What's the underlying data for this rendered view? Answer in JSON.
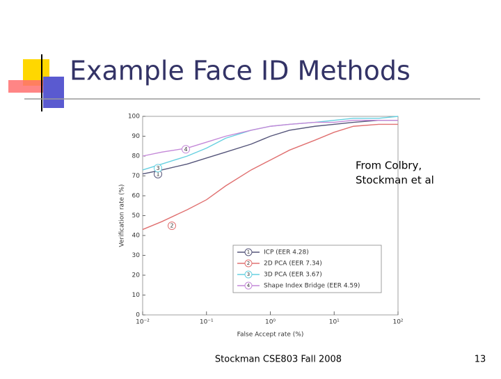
{
  "title": "Example Face ID Methods",
  "note": [
    "From Colbry,",
    "Stockman et al"
  ],
  "footer": "Stockman CSE803 Fall 2008",
  "page_number": "13",
  "chart_data": {
    "type": "line",
    "x_label": "False Accept rate (%)",
    "y_label": "Verification rate (%)",
    "xscale": "log",
    "xlim": [
      0.01,
      100
    ],
    "xticks": [
      {
        "value": 0.01,
        "label": "10⁻²"
      },
      {
        "value": 0.1,
        "label": "10⁻¹"
      },
      {
        "value": 1,
        "label": "10⁰"
      },
      {
        "value": 10,
        "label": "10¹"
      },
      {
        "value": 100,
        "label": "10²"
      }
    ],
    "ylim": [
      0,
      100
    ],
    "yticks": [
      0,
      10,
      20,
      30,
      40,
      50,
      60,
      70,
      80,
      90,
      100
    ],
    "x": [
      0.01,
      0.02,
      0.05,
      0.1,
      0.2,
      0.5,
      1,
      2,
      5,
      10,
      20,
      50,
      100
    ],
    "series": [
      {
        "name": "ICP (EER 4.28)",
        "marker": "1",
        "color": "#55557a",
        "values": [
          71,
          73,
          76,
          79,
          82,
          86,
          90,
          93,
          95,
          96,
          97,
          98,
          98
        ]
      },
      {
        "name": "2D PCA (EER 7.34)",
        "marker": "2",
        "color": "#e07070",
        "values": [
          43,
          47,
          53,
          58,
          65,
          73,
          78,
          83,
          88,
          92,
          95,
          96,
          96
        ]
      },
      {
        "name": "3D PCA (EER 3.67)",
        "marker": "3",
        "color": "#66d0e0",
        "values": [
          73,
          76,
          80,
          84,
          89,
          93,
          95,
          96,
          97,
          98,
          99,
          99,
          100
        ]
      },
      {
        "name": "Shape Index Bridge (EER 4.59)",
        "marker": "4",
        "color": "#c488d8",
        "values": [
          80,
          82,
          84,
          87,
          90,
          93,
          95,
          96,
          97,
          97,
          98,
          98,
          98
        ]
      }
    ],
    "legend": "lower-right"
  }
}
